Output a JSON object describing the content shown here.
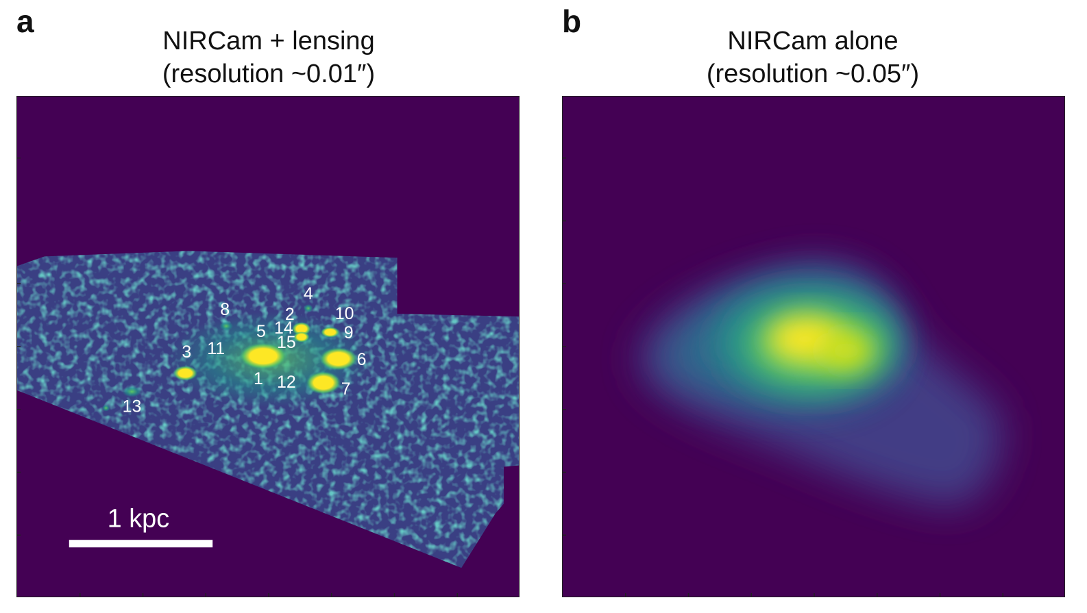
{
  "panels": [
    {
      "letter": "a",
      "title_line1": "NIRCam + lensing",
      "title_line2": "(resolution ~0.01″)",
      "scale_bar_label": "1 kpc",
      "source_labels": [
        "1",
        "2",
        "3",
        "4",
        "5",
        "6",
        "7",
        "8",
        "9",
        "10",
        "11",
        "12",
        "13",
        "14",
        "15"
      ]
    },
    {
      "letter": "b",
      "title_line1": "NIRCam alone",
      "title_line2": "(resolution ~0.05″)"
    }
  ],
  "colors": {
    "background": "#440154",
    "low": "#3b528b",
    "mid": "#21918c",
    "high": "#5ec962",
    "peak": "#fde725",
    "label": "#ffffff"
  }
}
